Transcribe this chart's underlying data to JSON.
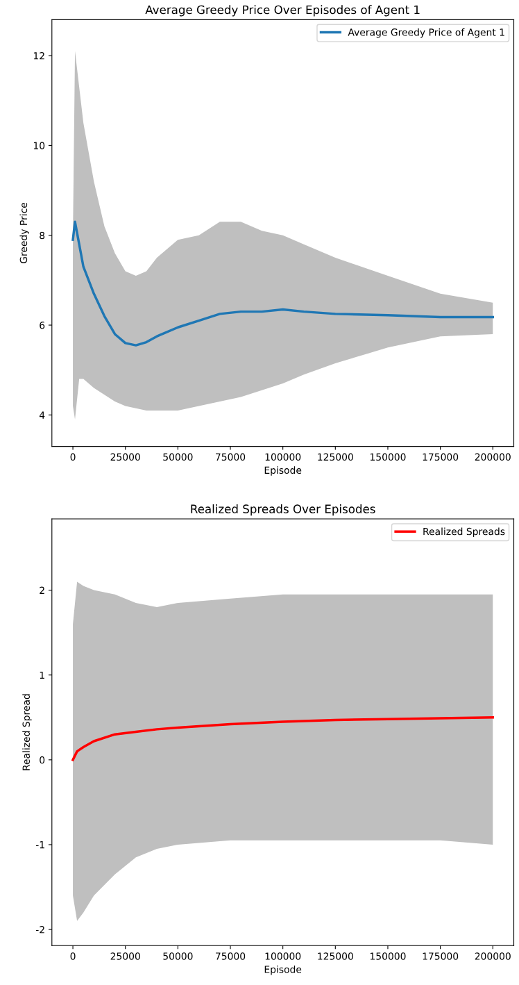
{
  "chart_data": [
    {
      "type": "line",
      "title": "Average Greedy Price Over Episodes of Agent 1",
      "xlabel": "Episode",
      "ylabel": "Greedy Price",
      "xlim": [
        -10000,
        210000
      ],
      "xticks": [
        0,
        25000,
        50000,
        75000,
        100000,
        125000,
        150000,
        175000,
        200000
      ],
      "ylim": [
        3.3,
        12.8
      ],
      "yticks": [
        4,
        6,
        8,
        10,
        12
      ],
      "legend": "top right",
      "grid": false,
      "x": [
        0,
        1000,
        3000,
        5000,
        10000,
        15000,
        20000,
        25000,
        30000,
        35000,
        40000,
        50000,
        60000,
        70000,
        80000,
        90000,
        100000,
        110000,
        125000,
        150000,
        175000,
        200000
      ],
      "series": [
        {
          "name": "Average Greedy Price of Agent 1",
          "color": "#1f77b4",
          "values": [
            7.9,
            8.3,
            7.8,
            7.3,
            6.7,
            6.2,
            5.8,
            5.6,
            5.55,
            5.62,
            5.75,
            5.95,
            6.1,
            6.25,
            6.3,
            6.3,
            6.35,
            6.3,
            6.25,
            6.22,
            6.18,
            6.18
          ],
          "lower": [
            4.2,
            3.9,
            4.8,
            4.8,
            4.6,
            4.45,
            4.3,
            4.2,
            4.15,
            4.1,
            4.1,
            4.1,
            4.2,
            4.3,
            4.4,
            4.55,
            4.7,
            4.9,
            5.15,
            5.5,
            5.75,
            5.8
          ],
          "upper": [
            8.0,
            12.1,
            11.3,
            10.5,
            9.2,
            8.2,
            7.6,
            7.2,
            7.1,
            7.2,
            7.5,
            7.9,
            8.0,
            8.3,
            8.3,
            8.1,
            8.0,
            7.8,
            7.5,
            7.1,
            6.7,
            6.5
          ]
        }
      ]
    },
    {
      "type": "line",
      "title": "Realized Spreads Over Episodes",
      "xlabel": "Episode",
      "ylabel": "Realized Spread",
      "xlim": [
        -10000,
        210000
      ],
      "xticks": [
        0,
        25000,
        50000,
        75000,
        100000,
        125000,
        150000,
        175000,
        200000
      ],
      "ylim": [
        -2.19,
        2.84
      ],
      "yticks": [
        -2,
        -1,
        0,
        1,
        2
      ],
      "legend": "top right",
      "grid": false,
      "x": [
        0,
        2000,
        5000,
        10000,
        20000,
        30000,
        40000,
        50000,
        75000,
        100000,
        125000,
        150000,
        175000,
        200000
      ],
      "series": [
        {
          "name": "Realized Spreads",
          "color": "#ff0000",
          "values": [
            0.0,
            0.1,
            0.15,
            0.22,
            0.3,
            0.33,
            0.36,
            0.38,
            0.42,
            0.45,
            0.47,
            0.48,
            0.49,
            0.5
          ],
          "lower": [
            -1.6,
            -1.9,
            -1.8,
            -1.6,
            -1.35,
            -1.15,
            -1.05,
            -1.0,
            -0.95,
            -0.95,
            -0.95,
            -0.95,
            -0.95,
            -1.0
          ],
          "upper": [
            1.6,
            2.1,
            2.05,
            2.0,
            1.95,
            1.85,
            1.8,
            1.85,
            1.9,
            1.95,
            1.95,
            1.95,
            1.95,
            1.95
          ]
        }
      ]
    }
  ]
}
